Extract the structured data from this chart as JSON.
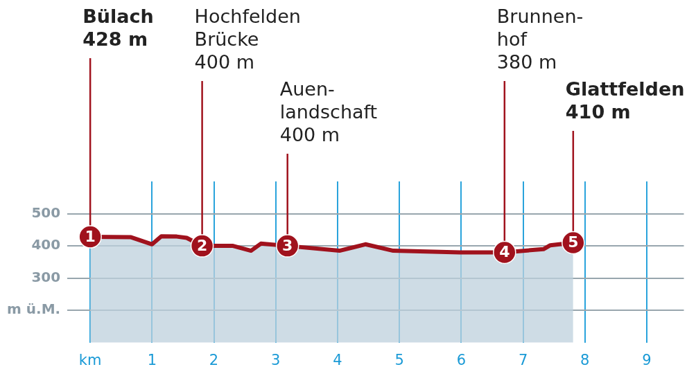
{
  "chart_data": {
    "type": "area",
    "xlim": [
      -0.37,
      9.6
    ],
    "ylim": [
      100,
      600
    ],
    "xticks": [
      {
        "value": 0,
        "label": "km"
      },
      1,
      2,
      3,
      4,
      5,
      6,
      7,
      8,
      9
    ],
    "yticks": [
      {
        "value": 200,
        "label": "m ü.M."
      },
      300,
      400,
      500
    ],
    "grid": true,
    "legend": false,
    "series": [
      {
        "type": "area",
        "color": "#a0121d",
        "x": [
          0,
          0.66,
          1.0,
          1.15,
          1.4,
          1.56,
          1.81,
          2.31,
          2.6,
          2.76,
          3.19,
          4.03,
          4.45,
          4.9,
          5.98,
          6.7,
          7.33,
          7.44,
          7.81
        ],
        "values": [
          428,
          427,
          405,
          430,
          429,
          425,
          400,
          400,
          385,
          407,
          400,
          385,
          405,
          385,
          380,
          380,
          390,
          402,
          410
        ]
      },
      {
        "type": "scatter",
        "color": "#a0121d",
        "marker": "circle",
        "x": [
          0,
          1.81,
          3.19,
          6.7,
          7.81
        ],
        "values": [
          428,
          400,
          400,
          380,
          410
        ]
      }
    ],
    "ref_lines": [
      {
        "axis": "x",
        "value": 0,
        "label": "Bülach\n428 m",
        "color": "#a0121d"
      },
      {
        "axis": "x",
        "value": 1.81,
        "label": "Hochfelden\nBrücke\n400 m",
        "color": "#a0121d"
      },
      {
        "axis": "x",
        "value": 3.19,
        "label": "Auen-\nlandschaft\n400 m",
        "color": "#a0121d"
      },
      {
        "axis": "x",
        "value": 6.7,
        "label": "Brunnen-\nhof\n380 m",
        "color": "#a0121d"
      },
      {
        "axis": "x",
        "value": 7.81,
        "label": "Glattfelden\n410 m",
        "color": "#a0121d"
      }
    ],
    "annotations": [
      {
        "text": "1",
        "x": 0,
        "y": 428
      },
      {
        "text": "2",
        "x": 1.81,
        "y": 400
      },
      {
        "text": "3",
        "x": 3.19,
        "y": 400
      },
      {
        "text": "4",
        "x": 6.7,
        "y": 380
      },
      {
        "text": "5",
        "x": 7.81,
        "y": 410
      }
    ]
  }
}
